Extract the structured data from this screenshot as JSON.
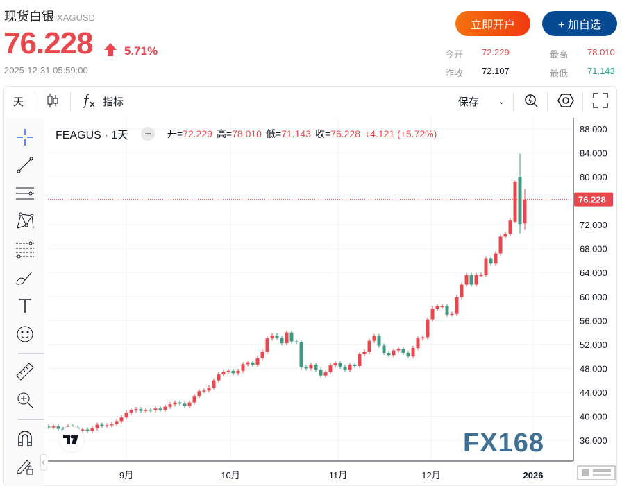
{
  "header": {
    "title": "现货白银",
    "symbol": "XAGUSD",
    "price": "76.228",
    "change_pct": "5.71%",
    "timestamp": "2025-12-31 05:59:00",
    "open_account_label": "立即开户",
    "add_watch_label": "+ 加自选",
    "stats": {
      "open_label": "今开",
      "open": "72.229",
      "high_label": "最高",
      "high": "78.010",
      "prev_close_label": "昨收",
      "prev_close": "72.107",
      "low_label": "最低",
      "low": "71.143"
    }
  },
  "toolbar": {
    "interval": "天",
    "indicators_label": "指标",
    "save_label": "保存",
    "icons": [
      "candlestick-icon",
      "fx-icon",
      "chevron-down-icon",
      "quick-search-icon",
      "settings-hex-icon",
      "fullscreen-icon"
    ]
  },
  "left_tools": [
    "crosshair-icon",
    "trend-line-icon",
    "horizontal-lines-icon",
    "pattern-icon",
    "fib-icon",
    "brush-icon",
    "text-icon",
    "emoji-icon",
    "ruler-icon",
    "zoom-in-icon",
    "magnet-icon",
    "lock-draw-icon"
  ],
  "legend": {
    "symbol": "FEAGUS · 1天",
    "o_label": "开=",
    "o": "72.229",
    "h_label": "高=",
    "h": "78.010",
    "l_label": "低=",
    "l": "71.143",
    "c_label": "收=",
    "c": "76.228",
    "change": "+4.121 (+5.72%)"
  },
  "watermark": "FX168",
  "colors": {
    "up": "#e8484d",
    "down": "#419982",
    "accent": "#074a94"
  },
  "chart_data": {
    "type": "candlestick",
    "ylim": [
      34,
      89
    ],
    "yticks": [
      "36.000",
      "40.000",
      "44.000",
      "48.000",
      "52.000",
      "56.000",
      "60.000",
      "64.000",
      "68.000",
      "72.000",
      "76.000",
      "80.000",
      "84.000",
      "88.000"
    ],
    "xticks": [
      "9月",
      "10月",
      "11月",
      "12月",
      "2026"
    ],
    "last_price": "76.228",
    "closes": [
      38.2,
      38.3,
      37.9,
      37.8,
      38.3,
      38.1,
      37.7,
      37.8,
      37.6,
      38.0,
      38.6,
      38.4,
      38.5,
      38.7,
      39.2,
      39.8,
      40.6,
      41.0,
      41.2,
      40.9,
      41.1,
      41.0,
      41.3,
      41.1,
      41.6,
      42.0,
      42.3,
      42.1,
      41.7,
      42.3,
      43.4,
      44.2,
      44.3,
      44.8,
      46.0,
      47.0,
      47.4,
      47.6,
      47.2,
      47.6,
      48.7,
      49.0,
      48.6,
      49.7,
      50.8,
      53.0,
      53.5,
      53.1,
      52.2,
      54.0,
      52.5,
      52.4,
      48.2,
      48.0,
      48.6,
      47.8,
      46.8,
      47.4,
      48.5,
      48.9,
      48.3,
      47.8,
      48.6,
      48.4,
      50.4,
      50.8,
      52.6,
      53.4,
      51.8,
      50.6,
      50.2,
      51.0,
      51.2,
      50.6,
      50.0,
      51.4,
      53.0,
      53.2,
      56.2,
      58.0,
      58.4,
      58.4,
      57.0,
      57.1,
      59.9,
      62.0,
      63.6,
      62.0,
      63.6,
      63.6,
      66.4,
      65.5,
      67.2,
      70.0,
      70.5,
      72.7
    ],
    "last_candles": [
      {
        "o": 72.5,
        "h": 79.4,
        "l": 72.3,
        "c": 79.2
      },
      {
        "o": 80.0,
        "h": 83.9,
        "l": 70.5,
        "c": 72.107
      },
      {
        "o": 72.229,
        "h": 78.01,
        "l": 71.143,
        "c": 76.228
      }
    ]
  }
}
